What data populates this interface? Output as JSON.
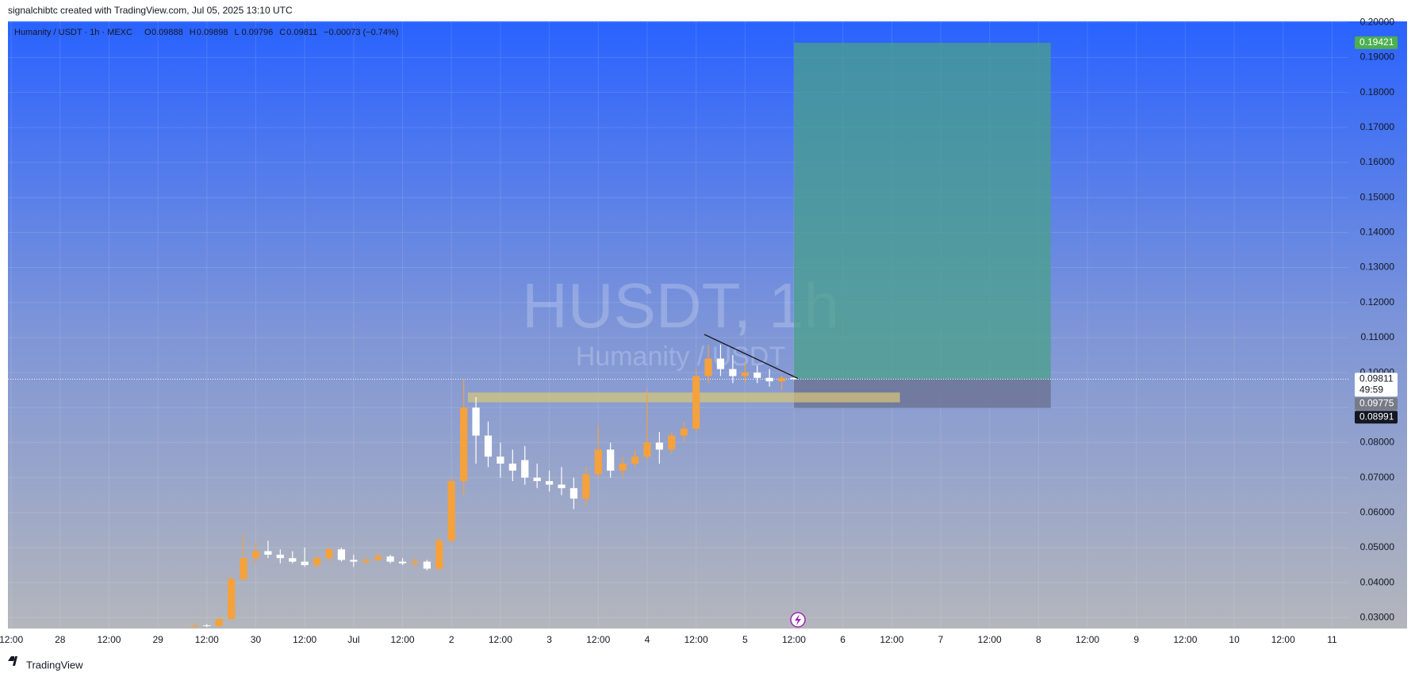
{
  "header": {
    "attribution": "signalchibtc created with TradingView.com, Jul 05, 2025 13:10 UTC",
    "footer": "TradingView"
  },
  "chart_data": {
    "type": "candlestick",
    "symbol": "Humanity / USDT · 1h · MEXC",
    "ohlc_legend": [
      {
        "key": "O",
        "value": "0.09888"
      },
      {
        "key": "H",
        "value": "0.09898"
      },
      {
        "key": "L",
        "value": "0.09796"
      },
      {
        "key": "C",
        "value": "0.09811"
      }
    ],
    "change": "−0.00073 (−0.74%)",
    "watermark": {
      "title": "HUSDT, 1h",
      "subtitle": "Humanity / USDT"
    },
    "x": [
      33,
      36,
      39,
      42,
      45,
      48,
      51,
      54,
      57,
      60,
      63,
      66,
      69,
      72,
      75,
      78,
      81,
      84,
      87,
      90,
      93,
      96,
      99,
      102,
      105,
      108,
      111,
      114,
      117,
      120,
      123,
      126,
      129,
      132,
      135,
      138,
      141,
      144,
      147,
      150,
      153,
      156,
      159,
      162,
      165,
      168,
      171,
      174,
      177,
      180
    ],
    "open": [
      0.0275,
      0.0278,
      0.0276,
      0.0296,
      0.041,
      0.047,
      0.049,
      0.048,
      0.047,
      0.046,
      0.045,
      0.047,
      0.0495,
      0.0465,
      0.046,
      0.0465,
      0.0475,
      0.046,
      0.0455,
      0.046,
      0.044,
      0.052,
      0.069,
      0.09,
      0.082,
      0.076,
      0.074,
      0.075,
      0.07,
      0.069,
      0.068,
      0.067,
      0.064,
      0.071,
      0.078,
      0.072,
      0.074,
      0.076,
      0.08,
      0.078,
      0.082,
      0.084,
      0.099,
      0.104,
      0.101,
      0.099,
      0.1,
      0.0985,
      0.0975,
      0.0985
    ],
    "high": [
      0.0285,
      0.0282,
      0.03,
      0.042,
      0.0535,
      0.0515,
      0.052,
      0.0495,
      0.049,
      0.05,
      0.048,
      0.0505,
      0.05,
      0.048,
      0.0475,
      0.0485,
      0.048,
      0.047,
      0.047,
      0.0465,
      0.053,
      0.07,
      0.098,
      0.093,
      0.086,
      0.08,
      0.078,
      0.079,
      0.074,
      0.072,
      0.073,
      0.07,
      0.073,
      0.085,
      0.08,
      0.076,
      0.078,
      0.095,
      0.083,
      0.083,
      0.086,
      0.101,
      0.108,
      0.108,
      0.105,
      0.103,
      0.102,
      0.101,
      0.099,
      0.099
    ],
    "low": [
      0.0272,
      0.0273,
      0.0274,
      0.0294,
      0.0405,
      0.0455,
      0.047,
      0.0455,
      0.0455,
      0.0445,
      0.044,
      0.046,
      0.046,
      0.0445,
      0.045,
      0.046,
      0.0455,
      0.045,
      0.0445,
      0.0435,
      0.0435,
      0.0515,
      0.065,
      0.074,
      0.073,
      0.07,
      0.069,
      0.068,
      0.067,
      0.066,
      0.065,
      0.061,
      0.062,
      0.07,
      0.07,
      0.07,
      0.073,
      0.075,
      0.074,
      0.077,
      0.08,
      0.083,
      0.097,
      0.099,
      0.097,
      0.097,
      0.097,
      0.096,
      0.095,
      0.0979
    ],
    "close": [
      0.0278,
      0.0276,
      0.0296,
      0.041,
      0.047,
      0.049,
      0.048,
      0.047,
      0.046,
      0.045,
      0.047,
      0.0495,
      0.0465,
      0.046,
      0.0465,
      0.0475,
      0.046,
      0.0455,
      0.046,
      0.044,
      0.052,
      0.069,
      0.09,
      0.082,
      0.076,
      0.074,
      0.072,
      0.07,
      0.069,
      0.068,
      0.067,
      0.064,
      0.071,
      0.078,
      0.072,
      0.074,
      0.076,
      0.08,
      0.078,
      0.082,
      0.084,
      0.099,
      0.104,
      0.101,
      0.099,
      0.1,
      0.0985,
      0.0975,
      0.0985,
      0.0981
    ],
    "up_color": "#f5a13c",
    "down_color": "#ffffff",
    "xlim": [
      -12.8,
      316
    ],
    "ylim": [
      0.0269,
      0.2003
    ],
    "xticks": [
      {
        "value": -12,
        "label": "12:00"
      },
      {
        "value": 0,
        "label": "28"
      },
      {
        "value": 12,
        "label": "12:00"
      },
      {
        "value": 24,
        "label": "29"
      },
      {
        "value": 36,
        "label": "12:00"
      },
      {
        "value": 48,
        "label": "30"
      },
      {
        "value": 60,
        "label": "12:00"
      },
      {
        "value": 72,
        "label": "Jul"
      },
      {
        "value": 84,
        "label": "12:00"
      },
      {
        "value": 96,
        "label": "2"
      },
      {
        "value": 108,
        "label": "12:00"
      },
      {
        "value": 120,
        "label": "3"
      },
      {
        "value": 132,
        "label": "12:00"
      },
      {
        "value": 144,
        "label": "4"
      },
      {
        "value": 156,
        "label": "12:00"
      },
      {
        "value": 168,
        "label": "5"
      },
      {
        "value": 180,
        "label": "12:00"
      },
      {
        "value": 192,
        "label": "6"
      },
      {
        "value": 204,
        "label": "12:00"
      },
      {
        "value": 216,
        "label": "7"
      },
      {
        "value": 228,
        "label": "12:00"
      },
      {
        "value": 240,
        "label": "8"
      },
      {
        "value": 252,
        "label": "12:00"
      },
      {
        "value": 264,
        "label": "9"
      },
      {
        "value": 276,
        "label": "12:00"
      },
      {
        "value": 288,
        "label": "10"
      },
      {
        "value": 300,
        "label": "12:00"
      },
      {
        "value": 312,
        "label": "11"
      }
    ],
    "yticks": [
      {
        "value": 0.03,
        "label": "0.03000"
      },
      {
        "value": 0.04,
        "label": "0.04000"
      },
      {
        "value": 0.05,
        "label": "0.05000"
      },
      {
        "value": 0.06,
        "label": "0.06000"
      },
      {
        "value": 0.07,
        "label": "0.07000"
      },
      {
        "value": 0.08,
        "label": "0.08000"
      },
      {
        "value": 0.09,
        "label": "0.09000"
      },
      {
        "value": 0.1,
        "label": "0.10000"
      },
      {
        "value": 0.11,
        "label": "0.11000"
      },
      {
        "value": 0.12,
        "label": "0.12000"
      },
      {
        "value": 0.13,
        "label": "0.13000"
      },
      {
        "value": 0.14,
        "label": "0.14000"
      },
      {
        "value": 0.15,
        "label": "0.15000"
      },
      {
        "value": 0.16,
        "label": "0.16000"
      },
      {
        "value": 0.17,
        "label": "0.17000"
      },
      {
        "value": 0.18,
        "label": "0.18000"
      },
      {
        "value": 0.19,
        "label": "0.19000"
      },
      {
        "value": 0.2,
        "label": "0.20000"
      }
    ],
    "grid": true,
    "position": {
      "entry": 0.09811,
      "target": 0.19421,
      "stop": 0.08991,
      "x": [
        180,
        243
      ],
      "profit_color": "#4aa08a",
      "loss_color": "#6a6f8e"
    },
    "level_labels": [
      0.09775
    ],
    "countdown": "49:59",
    "zone": {
      "top": 0.0943,
      "bottom": 0.0915,
      "x": [
        100,
        206
      ],
      "color": "#d8c878"
    },
    "trendline": {
      "x": [
        158,
        181
      ],
      "y": [
        0.1109,
        0.0983
      ],
      "color": "#111111"
    }
  }
}
